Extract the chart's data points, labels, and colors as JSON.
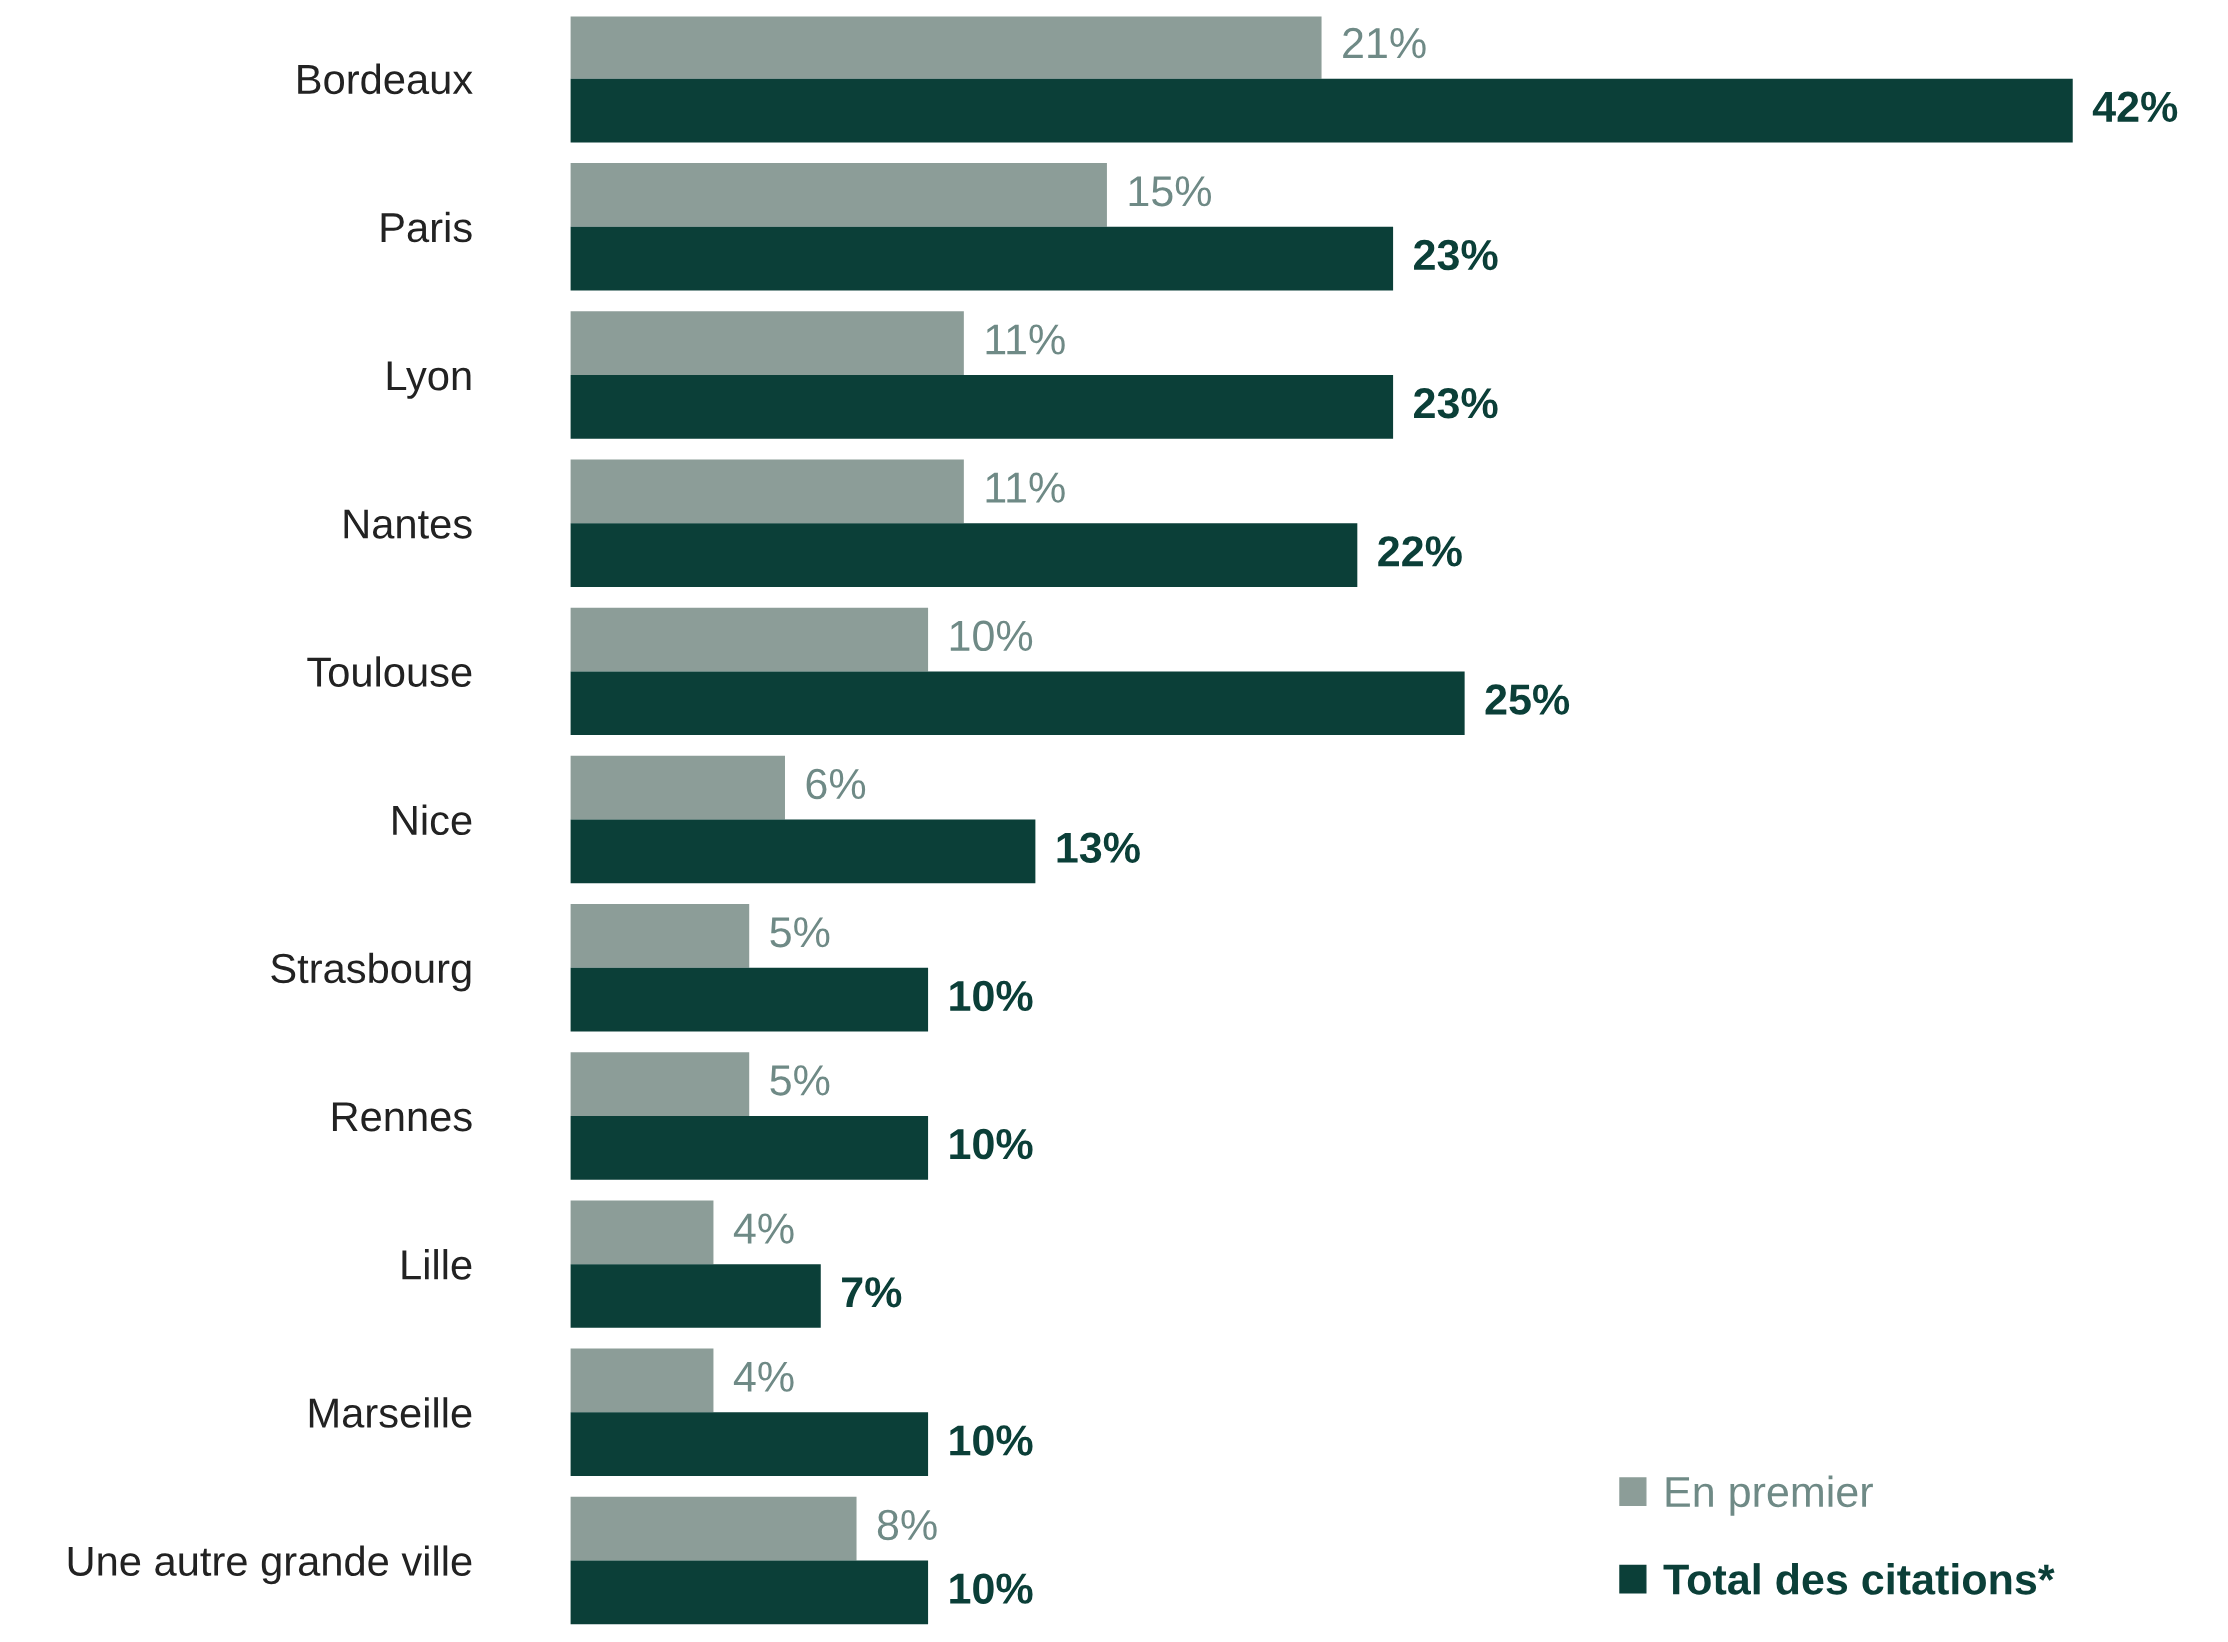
{
  "chart_data": {
    "type": "bar",
    "orientation": "horizontal",
    "legend": "bottom right",
    "grid": false,
    "categories": [
      "Bordeaux",
      "Paris",
      "Lyon",
      "Nantes",
      "Toulouse",
      "Nice",
      "Strasbourg",
      "Rennes",
      "Lille",
      "Marseille",
      "Une autre grande ville"
    ],
    "series": [
      {
        "name": "En premier",
        "color": "#8c9d98",
        "values": [
          21,
          15,
          11,
          11,
          10,
          6,
          5,
          5,
          4,
          4,
          8
        ],
        "value_labels": [
          "21%",
          "15%",
          "11%",
          "11%",
          "10%",
          "6%",
          "5%",
          "5%",
          "4%",
          "4%",
          "8%"
        ]
      },
      {
        "name": "Total des citations*",
        "color": "#0b3f38",
        "values": [
          42,
          23,
          23,
          22,
          25,
          13,
          10,
          10,
          7,
          10,
          10
        ],
        "value_labels": [
          "42%",
          "23%",
          "23%",
          "22%",
          "25%",
          "13%",
          "10%",
          "10%",
          "7%",
          "10%",
          "10%"
        ]
      }
    ]
  }
}
